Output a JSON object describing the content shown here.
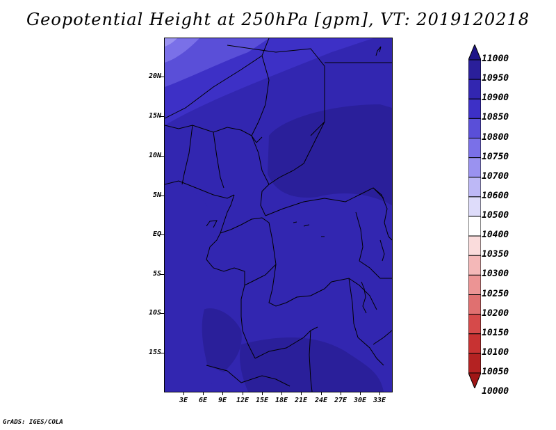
{
  "title": "Geopotential Height at 250hPa [gpm], VT: 2019120218",
  "footer": "GrADS: IGES/COLA",
  "map": {
    "lat_labels": [
      "20N",
      "15N",
      "10N",
      "5N",
      "EQ",
      "5S",
      "10S",
      "15S"
    ],
    "lon_labels": [
      "3E",
      "6E",
      "9E",
      "12E",
      "15E",
      "18E",
      "21E",
      "24E",
      "27E",
      "30E",
      "33E"
    ],
    "fill_colors": {
      "c10800": "#5a4fd8",
      "c10850": "#3d30c6",
      "c10900": "#3226b0",
      "c10950": "#2a1f9a"
    }
  },
  "colorbar": {
    "levels": [
      "11000",
      "10950",
      "10900",
      "10850",
      "10800",
      "10750",
      "10700",
      "10600",
      "10500",
      "10400",
      "10350",
      "10300",
      "10250",
      "10200",
      "10150",
      "10100",
      "10050",
      "10000"
    ],
    "colors": [
      "#1e1488",
      "#2a1f9a",
      "#3226b0",
      "#3d30c6",
      "#5a4fd8",
      "#7a70e8",
      "#9a92f0",
      "#bdb8f6",
      "#dedcfa",
      "#ffffff",
      "#fadcdc",
      "#f4b8b8",
      "#ec9494",
      "#e07070",
      "#d64a4a",
      "#c83232",
      "#b42222",
      "#a01616"
    ]
  }
}
